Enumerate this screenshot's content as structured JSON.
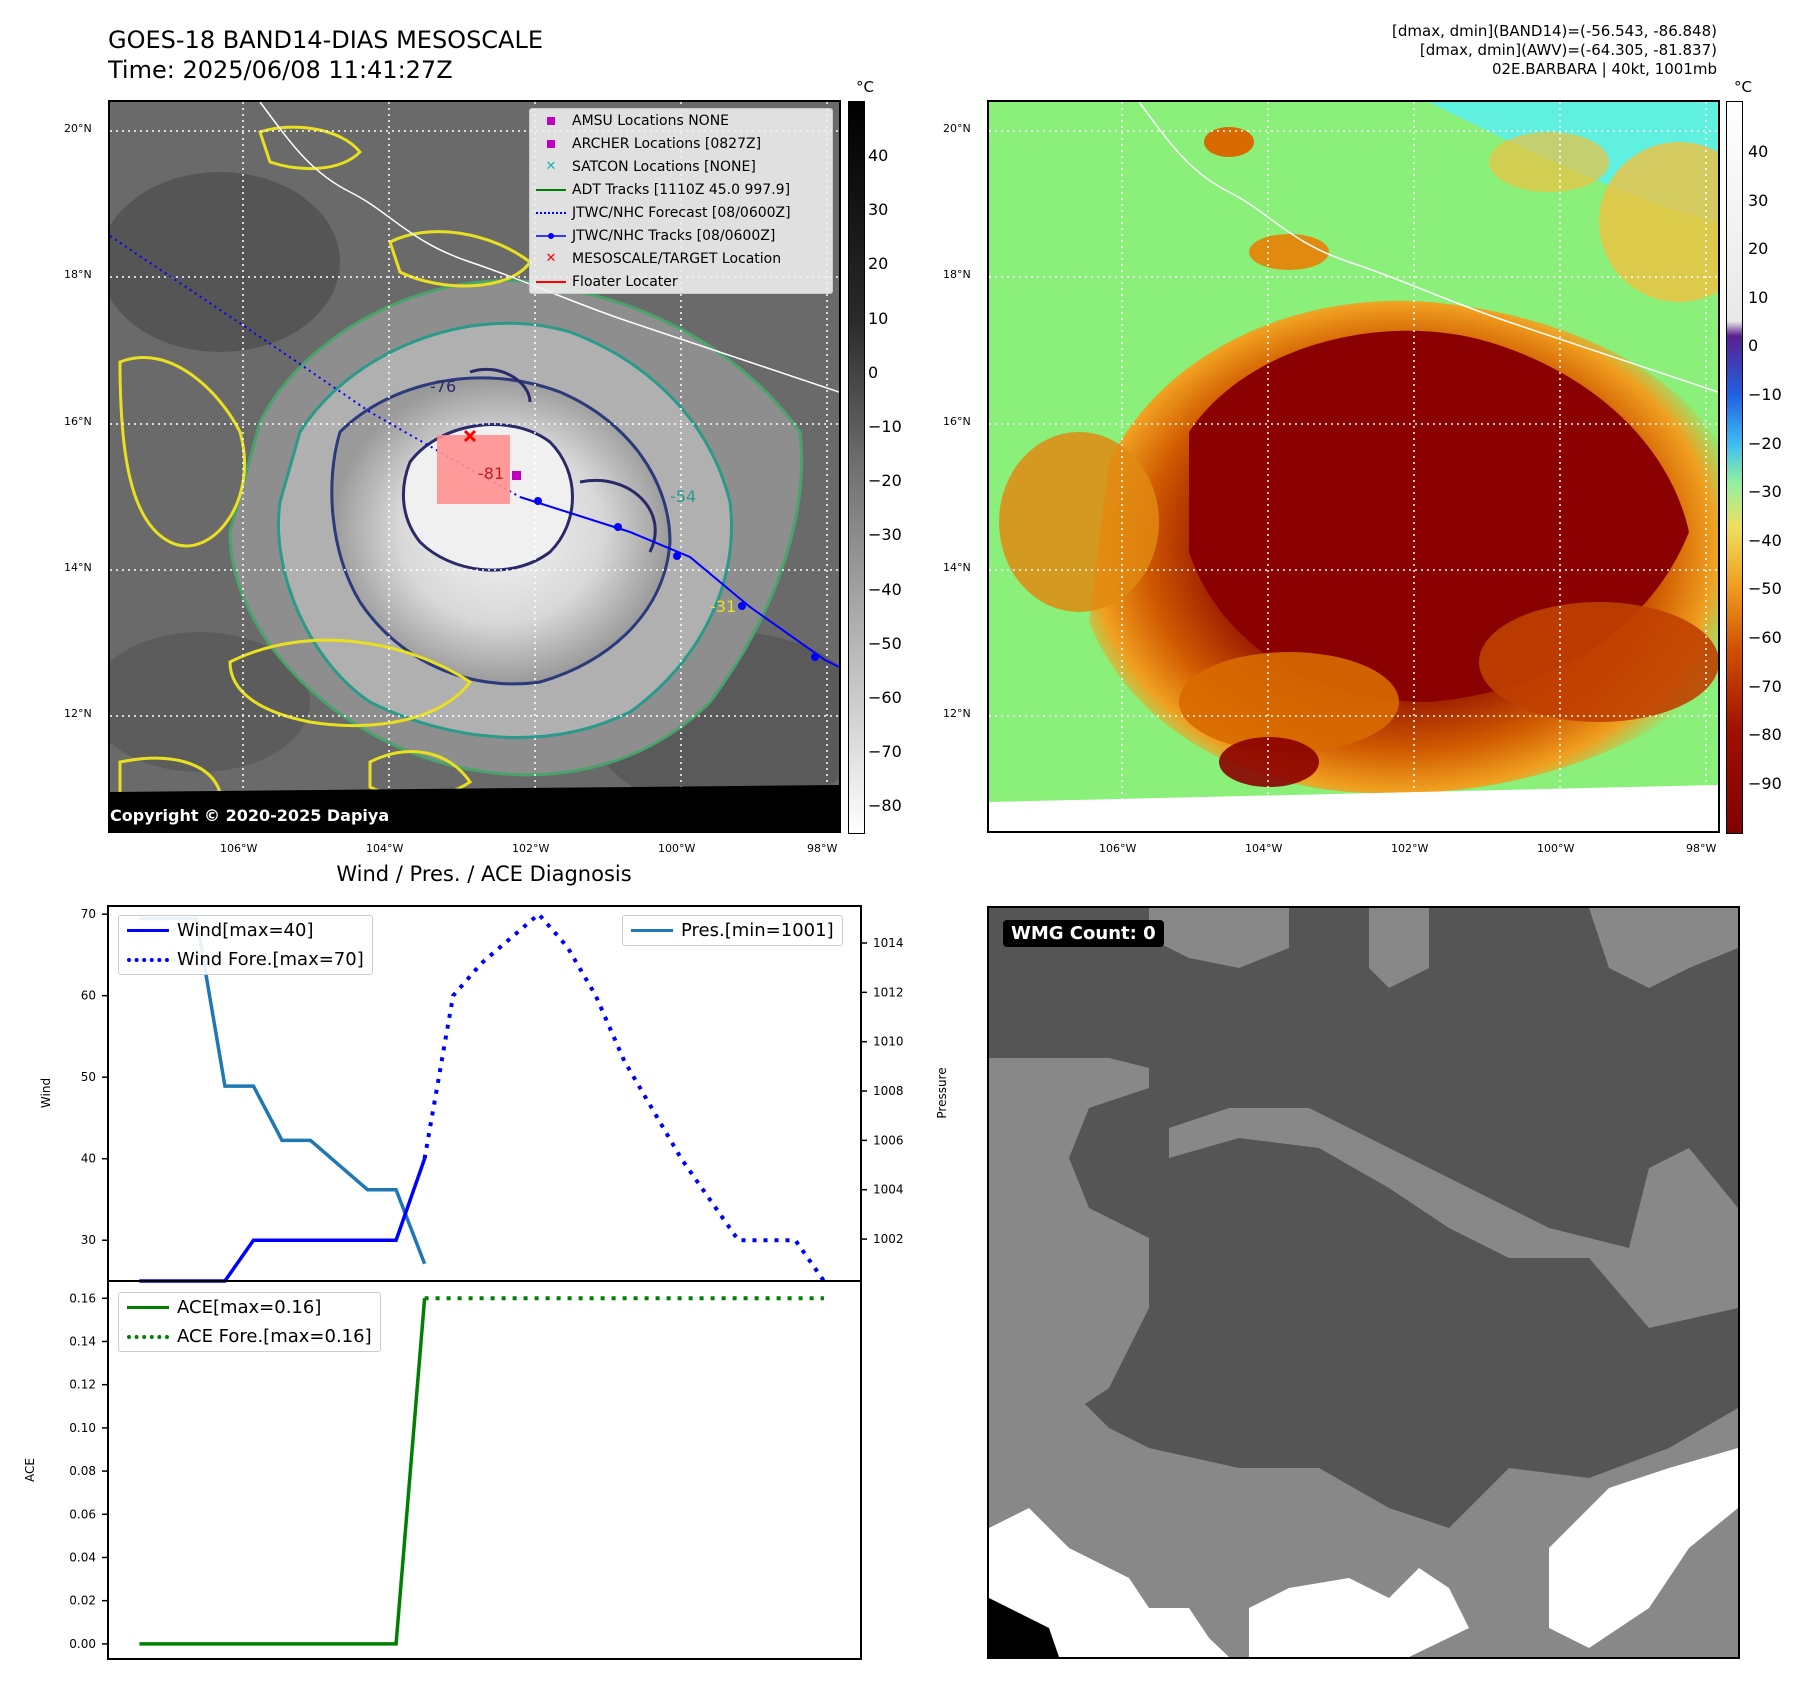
{
  "header": {
    "title_line1": "GOES-18 BAND14-DIAS MESOSCALE",
    "title_line2": "Time: 2025/06/08 11:41:27Z",
    "info_line1": "[dmax, dmin](BAND14)=(-56.543, -86.848)",
    "info_line2": "[dmax, dmin](AWV)=(-64.305, -81.837)",
    "info_line3": "02E.BARBARA | 40kt, 1001mb"
  },
  "map": {
    "lat_labels": [
      "20°N",
      "18°N",
      "16°N",
      "14°N",
      "12°N"
    ],
    "lon_labels": [
      "106°W",
      "104°W",
      "102°W",
      "100°W",
      "98°W"
    ],
    "copyright": "Copyright © 2020-2025 Dapiya",
    "contour_labels": [
      "-31",
      "-54",
      "-76",
      "-81"
    ],
    "legend": [
      {
        "label": "AMSU Locations NONE",
        "color": "#c000c0",
        "marker": "square"
      },
      {
        "label": "ARCHER Locations [0827Z]",
        "color": "#c000c0",
        "marker": "square"
      },
      {
        "label": "SATCON Locations [NONE]",
        "color": "#20b0b0",
        "marker": "x"
      },
      {
        "label": "ADT Tracks [1110Z 45.0 997.9]",
        "color": "#008000",
        "marker": "line"
      },
      {
        "label": "JTWC/NHC Forecast [08/0600Z]",
        "color": "#0000ff",
        "marker": "dotted"
      },
      {
        "label": "JTWC/NHC Tracks [08/0600Z]",
        "color": "#0000ff",
        "marker": "line-dot"
      },
      {
        "label": "MESOSCALE/TARGET Location",
        "color": "#ff0000",
        "marker": "x"
      },
      {
        "label": "Floater Locater",
        "color": "#ff0000",
        "marker": "line"
      }
    ]
  },
  "colorbar_gray": {
    "unit": "°C",
    "ticks": [
      "40",
      "30",
      "20",
      "10",
      "0",
      "−10",
      "−20",
      "−30",
      "−40",
      "−50",
      "−60",
      "−70",
      "−80"
    ]
  },
  "colorbar_awv": {
    "unit": "°C",
    "ticks": [
      "40",
      "30",
      "20",
      "10",
      "0",
      "−10",
      "−20",
      "−30",
      "−40",
      "−50",
      "−60",
      "−70",
      "−80",
      "−90"
    ]
  },
  "wmg": {
    "label": "WMG Count: 0"
  },
  "chart_data": [
    {
      "type": "line",
      "title": "Wind / Pres. / ACE Diagnosis",
      "ylabel": "Wind",
      "ylabel_right": "Pressure",
      "ylim": [
        25,
        71
      ],
      "ylim_right": [
        1000.3,
        1015.5
      ],
      "yticks": [
        30,
        40,
        50,
        60,
        70
      ],
      "yticks_right": [
        1002,
        1004,
        1006,
        1008,
        1010,
        1012,
        1014
      ],
      "x": [
        0,
        1,
        2,
        3,
        4,
        5,
        6,
        7,
        8,
        9,
        10,
        11,
        12,
        13,
        14,
        15,
        16,
        17,
        18,
        19,
        20,
        21,
        22,
        23,
        24
      ],
      "series": [
        {
          "name": "Wind[max=40]",
          "color": "#0000ff",
          "style": "solid",
          "axis": "left",
          "x": [
            0,
            1,
            2,
            3,
            4,
            5,
            6,
            7,
            8,
            9,
            10
          ],
          "values": [
            25,
            25,
            25,
            25,
            30,
            30,
            30,
            30,
            30,
            30,
            40
          ]
        },
        {
          "name": "Wind Fore.[max=70]",
          "color": "#0000ff",
          "style": "dotted",
          "axis": "left",
          "x": [
            10,
            11,
            12,
            13,
            14,
            15,
            16,
            17,
            18,
            19,
            20,
            21,
            22,
            23,
            24
          ],
          "values": [
            40,
            60,
            64,
            67,
            70,
            66,
            60,
            52,
            46,
            40,
            35,
            30,
            30,
            30,
            25
          ]
        },
        {
          "name": "Pres.[min=1001]",
          "color": "#1f77b4",
          "style": "solid",
          "axis": "right",
          "x": [
            0,
            1,
            2,
            3,
            4,
            5,
            6,
            7,
            8,
            9,
            10
          ],
          "values": [
            1015,
            1015,
            1015,
            1008.2,
            1008.2,
            1006,
            1006,
            1005,
            1004,
            1004,
            1001
          ]
        }
      ]
    },
    {
      "type": "line",
      "ylabel": "ACE",
      "ylim": [
        -0.007,
        0.168
      ],
      "yticks": [
        0.0,
        0.02,
        0.04,
        0.06,
        0.08,
        0.1,
        0.12,
        0.14,
        0.16
      ],
      "series": [
        {
          "name": "ACE[max=0.16]",
          "color": "#008000",
          "style": "solid",
          "x": [
            0,
            9,
            10
          ],
          "values": [
            0,
            0,
            0.16
          ]
        },
        {
          "name": "ACE Fore.[max=0.16]",
          "color": "#008000",
          "style": "dotted",
          "x": [
            10,
            24
          ],
          "values": [
            0.16,
            0.16
          ]
        }
      ]
    }
  ]
}
